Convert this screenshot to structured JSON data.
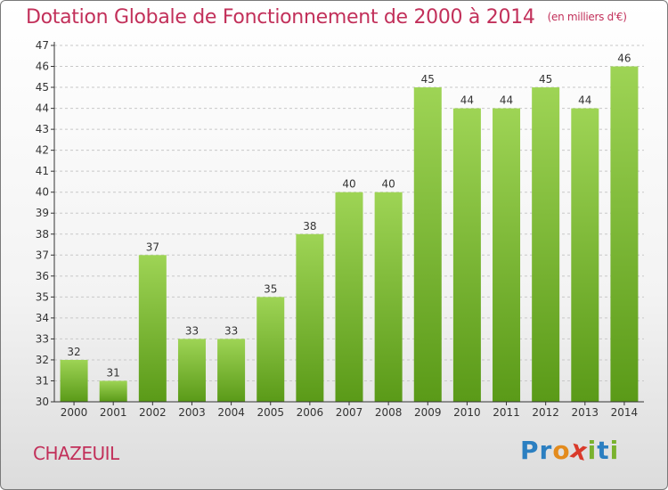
{
  "title": "Dotation Globale de Fonctionnement de 2000 à 2014",
  "subtitle": "(en milliers d'€)",
  "commune": "CHAZEUIL",
  "logo": {
    "letters": [
      "P",
      "r",
      "o",
      "x",
      "i",
      "t",
      "i"
    ],
    "colors": [
      "#2b7fc1",
      "#2b7fc1",
      "#e38b1d",
      "#d93a2b",
      "#7ab22e",
      "#2b7fc1",
      "#7ab22e"
    ]
  },
  "colors": {
    "title": "#c2305a",
    "bar_top": "#9ed455",
    "bar_bottom": "#5a9a18",
    "grid": "#c8c8c8",
    "axis": "#333333"
  },
  "chart_data": {
    "type": "bar",
    "categories": [
      "2000",
      "2001",
      "2002",
      "2003",
      "2004",
      "2005",
      "2006",
      "2007",
      "2008",
      "2009",
      "2010",
      "2011",
      "2012",
      "2013",
      "2014"
    ],
    "values": [
      32,
      31,
      37,
      33,
      33,
      35,
      38,
      40,
      40,
      45,
      44,
      44,
      45,
      44,
      46
    ],
    "title": "Dotation Globale de Fonctionnement de 2000 à 2014",
    "subtitle": "(en milliers d'€)",
    "xlabel": "",
    "ylabel": "",
    "ylim": [
      30,
      47
    ],
    "yticks": [
      30,
      31,
      32,
      33,
      34,
      35,
      36,
      37,
      38,
      39,
      40,
      41,
      42,
      43,
      44,
      45,
      46,
      47
    ],
    "grid": "horizontal-dashed",
    "legend": "none"
  }
}
